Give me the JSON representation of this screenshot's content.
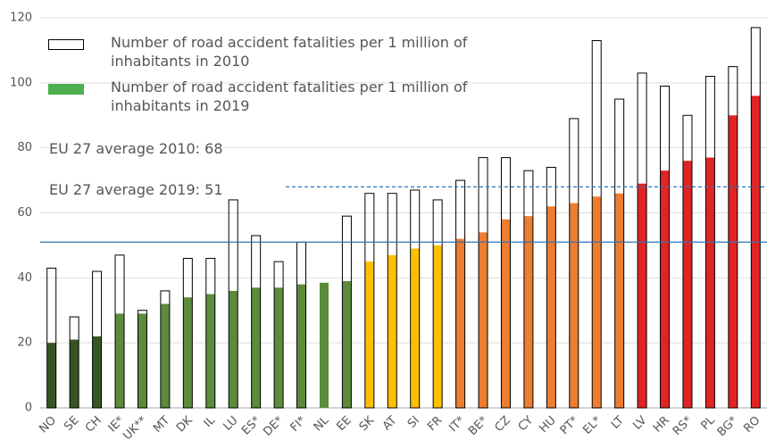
{
  "chart_data": {
    "type": "bar",
    "categories": [
      "NO",
      "SE",
      "CH",
      "IE*",
      "UK**",
      "MT",
      "DK",
      "IL",
      "LU",
      "ES*",
      "DE*",
      "FI*",
      "NL",
      "EE",
      "SK",
      "AT",
      "SI",
      "FR",
      "IT*",
      "BE*",
      "CZ",
      "CY",
      "HU",
      "PT*",
      "EL*",
      "LT",
      "LV",
      "HR",
      "RS*",
      "PL",
      "BG*",
      "RO"
    ],
    "series": [
      {
        "name": "Number of road accident fatalities per 1 million of inhabitants in 2010",
        "color": "#000000",
        "style": "outline",
        "values": [
          43,
          28,
          42,
          47,
          30,
          36,
          46,
          46,
          64,
          53,
          45,
          51,
          null,
          59,
          66,
          66,
          67,
          64,
          70,
          77,
          77,
          73,
          74,
          89,
          113,
          95,
          103,
          99,
          90,
          102,
          105,
          117
        ]
      },
      {
        "name": "Number of road accident fatalities per 1 million of inhabitants in 2019",
        "color": "#4caf50",
        "style": "filled",
        "colors": [
          "#375623",
          "#375623",
          "#375623",
          "#5b8b3b",
          "#5b8b3b",
          "#5b8b3b",
          "#5b8b3b",
          "#5b8b3b",
          "#5b8b3b",
          "#5b8b3b",
          "#5b8b3b",
          "#5b8b3b",
          "#5b8b3b",
          "#5b8b3b",
          "#ffc000",
          "#ffc000",
          "#ffc000",
          "#ffc000",
          "#ed7d31",
          "#ed7d31",
          "#ed7d31",
          "#ed7d31",
          "#ed7d31",
          "#ed7d31",
          "#ed7d31",
          "#ed7d31",
          "#e02424",
          "#e02424",
          "#e02424",
          "#e02424",
          "#e02424",
          "#e02424"
        ],
        "values": [
          20,
          21,
          22,
          29,
          29,
          32,
          34,
          35,
          36,
          37,
          37,
          38,
          38.5,
          39,
          45,
          47,
          49,
          50,
          52,
          54,
          58,
          59,
          62,
          63,
          65,
          66,
          69,
          73,
          76,
          77,
          90,
          96
        ]
      }
    ],
    "reference_lines": [
      {
        "label": "EU 27 average 2010: 68",
        "value": 68,
        "color": "#2e75b6",
        "style": "dashed"
      },
      {
        "label": "EU 27 average 2019: 51",
        "value": 51,
        "color": "#2e75b6",
        "style": "solid"
      }
    ],
    "ylim": [
      0,
      120
    ],
    "yticks": [
      0,
      20,
      40,
      60,
      80,
      100,
      120
    ],
    "grid": true
  }
}
